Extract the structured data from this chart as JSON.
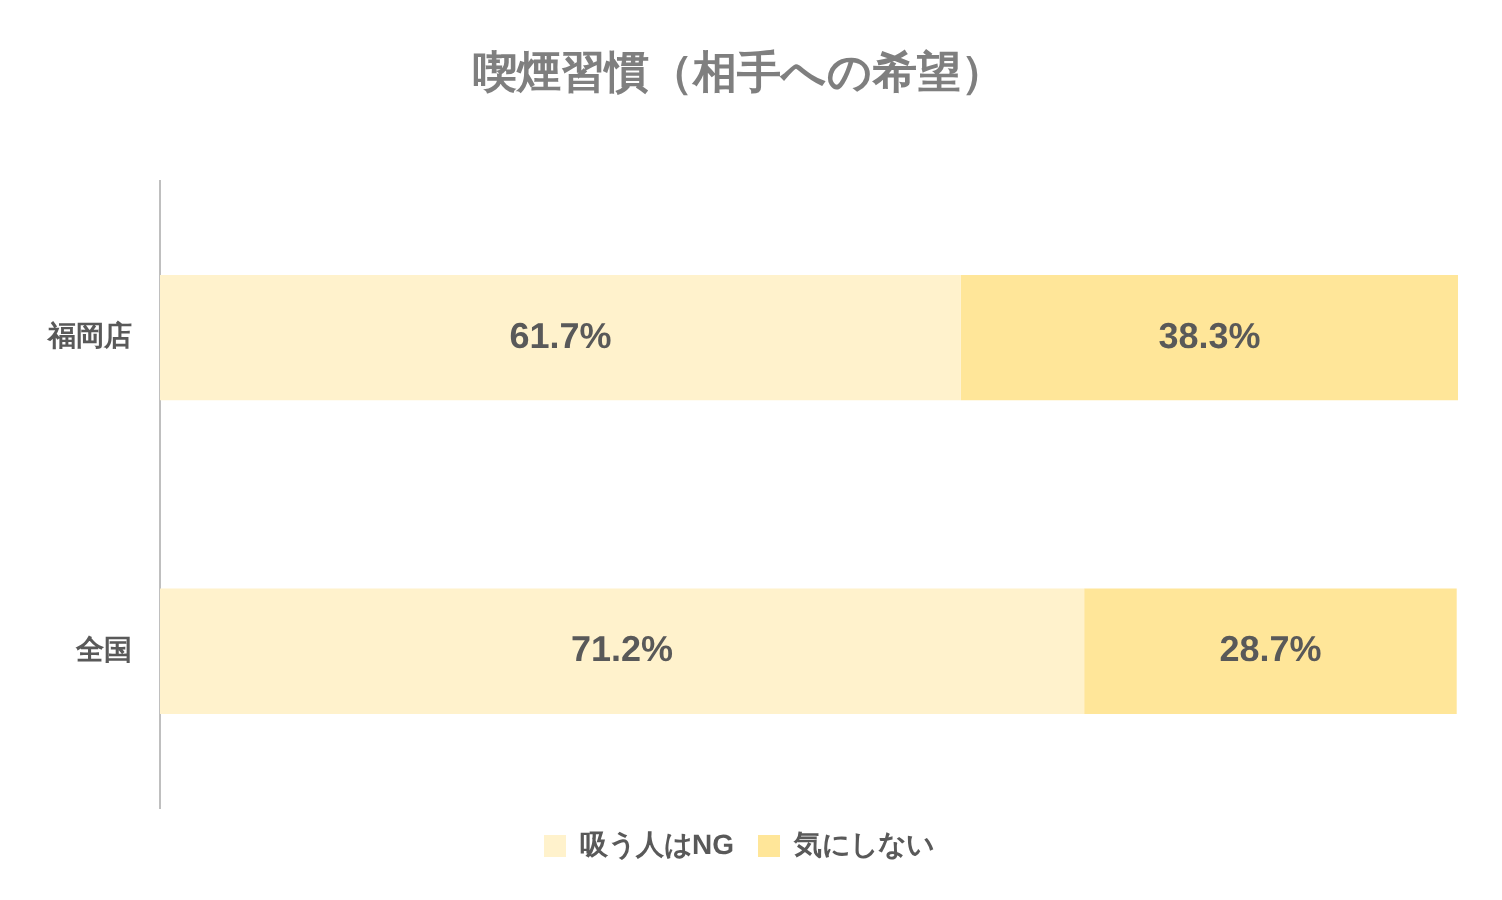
{
  "chart_data": {
    "type": "bar",
    "title": "喫煙習慣（相手への希望）",
    "orientation": "horizontal",
    "stacked": true,
    "categories": [
      "福岡店",
      "全国"
    ],
    "series": [
      {
        "name": "吸う人はNG",
        "color": "#fff2cc",
        "values": [
          61.7,
          71.2
        ],
        "value_labels": [
          "61.7%",
          "71.2%"
        ]
      },
      {
        "name": "気にしない",
        "color": "#ffe699",
        "values": [
          38.3,
          28.7
        ],
        "value_labels": [
          "38.3%",
          "28.7%"
        ]
      }
    ],
    "legend": "bottom",
    "grid": false,
    "tick_labels": "y"
  }
}
